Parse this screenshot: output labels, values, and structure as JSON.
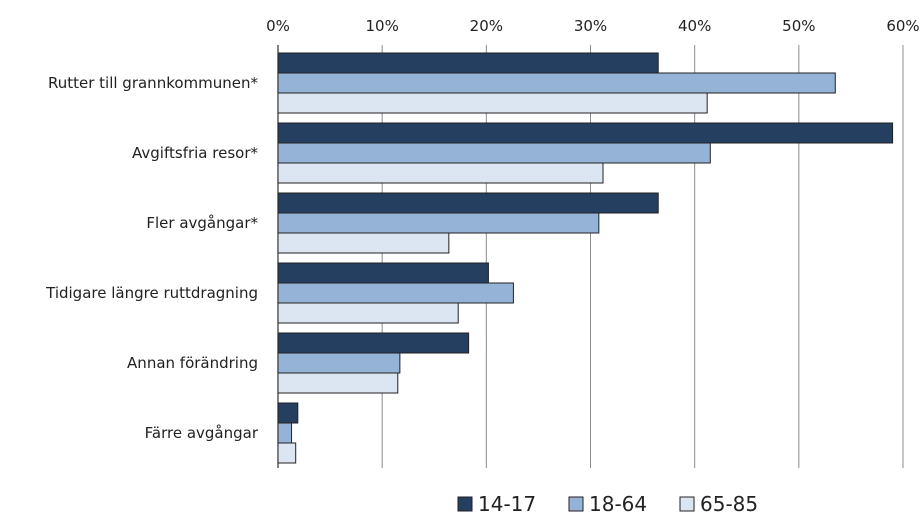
{
  "chart_data": {
    "type": "bar",
    "orientation": "horizontal",
    "categories": [
      "Rutter till grannkommunen*",
      "Avgiftsfria resor*",
      "Fler avgångar*",
      "Tidigare längre ruttdragning",
      "Annan förändring",
      "Färre avgångar"
    ],
    "series": [
      {
        "name": "14-17",
        "color": "#243F60",
        "values": [
          36.5,
          59.0,
          36.5,
          20.2,
          18.3,
          1.9
        ]
      },
      {
        "name": "18-64",
        "color": "#95B3D7",
        "values": [
          53.5,
          41.5,
          30.8,
          22.6,
          11.7,
          1.3
        ]
      },
      {
        "name": "65-85",
        "color": "#DCE6F2",
        "values": [
          41.2,
          31.2,
          16.4,
          17.3,
          11.5,
          1.7
        ]
      }
    ],
    "x_ticks": [
      "0%",
      "10%",
      "20%",
      "30%",
      "40%",
      "50%",
      "60%"
    ],
    "xlim": [
      0,
      60
    ],
    "axis_position": "top",
    "grid": true,
    "legend_position": "bottom",
    "title": "",
    "xlabel": "",
    "ylabel": ""
  }
}
